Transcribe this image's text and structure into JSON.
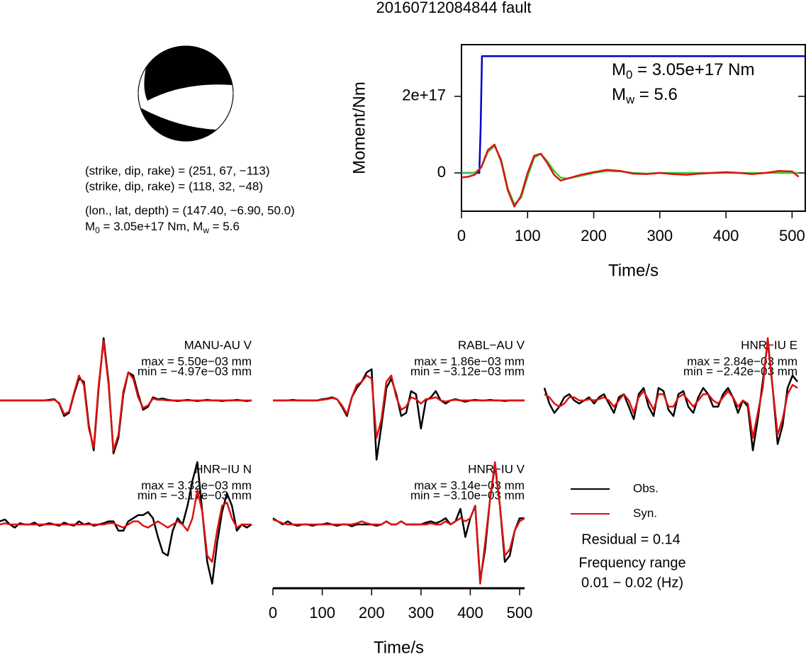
{
  "title": "20160712084844 fault",
  "mechanism": {
    "lines": [
      "(strike, dip, rake) = (251, 67, −113)",
      "(strike, dip, rake) = (118, 32, −48)",
      "(lon., lat, depth) = (147.40, −6.90, 50.0)"
    ],
    "moment": [
      "M",
      "0",
      " = 3.05e+17 Nm, M",
      "w",
      " = 5.6"
    ]
  },
  "fit": {
    "residual": "Residual = 0.14",
    "frequency_label": "Frequency range",
    "frequency": "0.01 − 0.02 (Hz)"
  },
  "chart_data": [
    {
      "type": "line",
      "xlabel": "Time/s",
      "ylabel": "Moment/Nm",
      "xlim": [
        0,
        520
      ],
      "ylim": [
        -1e+17,
        3.35e+17
      ],
      "xticks": [
        0,
        100,
        200,
        300,
        400,
        500
      ],
      "yticks": [
        0,
        {
          "value": 2e+17,
          "label": "2e+17"
        }
      ],
      "annotations": [
        [
          "M",
          "0",
          " = 3.05e+17 Nm"
        ],
        [
          "M",
          "w",
          " = 5.6"
        ]
      ],
      "series": [
        {
          "color": "#0000cc",
          "x": [
            0,
            27,
            29,
            31,
            520
          ],
          "values": [
            0,
            0,
            1.2e+17,
            3.05e+17,
            3.05e+17
          ]
        },
        {
          "color": "#33cc33",
          "x": [
            0,
            10,
            20,
            30,
            40,
            50,
            60,
            70,
            80,
            90,
            100,
            110,
            120,
            130,
            140,
            150,
            160,
            180,
            200,
            220,
            240,
            260,
            280,
            300,
            320,
            340,
            360,
            380,
            400,
            420,
            440,
            460,
            480,
            500,
            510
          ],
          "values": [
            0,
            0,
            0,
            1.5e+16,
            5.5e+16,
            7e+16,
            3.5e+16,
            -4e+16,
            -8.2e+16,
            -6.5e+16,
            -1e+16,
            4e+16,
            5e+16,
            3e+16,
            5000000000000000.0,
            -1.2e+16,
            -1.5e+16,
            -8000000000000000.0,
            0,
            5000000000000000.0,
            4000000000000000.0,
            0,
            -2000000000000000.0,
            0,
            0,
            0,
            0,
            0,
            0,
            0,
            0,
            0,
            0,
            0,
            0
          ]
        },
        {
          "color": "#dd1111",
          "x": [
            0,
            10,
            20,
            30,
            40,
            50,
            60,
            70,
            80,
            90,
            100,
            110,
            120,
            130,
            140,
            150,
            160,
            180,
            200,
            220,
            240,
            260,
            280,
            300,
            320,
            340,
            360,
            380,
            400,
            420,
            440,
            460,
            480,
            500,
            510
          ],
          "values": [
            -1.2e+16,
            -1e+16,
            -5000000000000000.0,
            1.5e+16,
            6e+16,
            7.4e+16,
            3e+16,
            -4.5e+16,
            -8.8e+16,
            -6e+16,
            0,
            4.5e+16,
            5e+16,
            2.5e+16,
            -5000000000000000.0,
            -2e+16,
            -1.5e+16,
            -5000000000000000.0,
            2000000000000000.0,
            8000000000000000.0,
            5000000000000000.0,
            -2000000000000000.0,
            -3000000000000000.0,
            0,
            -3000000000000000.0,
            -5000000000000000.0,
            -2000000000000000.0,
            0,
            2000000000000000.0,
            0,
            -3000000000000000.0,
            0,
            5000000000000000.0,
            4000000000000000.0,
            -1e+16
          ]
        }
      ]
    },
    {
      "type": "line",
      "title": "MANU-AU V",
      "annotations": [
        "max = 5.50e−03 mm",
        "min = −4.97e−03 mm"
      ],
      "xlim": [
        0,
        510
      ],
      "ylim": [
        -1,
        1
      ],
      "x": [
        0,
        10,
        20,
        30,
        40,
        50,
        60,
        70,
        80,
        90,
        100,
        110,
        120,
        130,
        140,
        150,
        160,
        170,
        180,
        190,
        200,
        210,
        220,
        230,
        240,
        250,
        260,
        270,
        280,
        290,
        300,
        310,
        320,
        330,
        340,
        350,
        360,
        370,
        380,
        390,
        400,
        410,
        420,
        430,
        440,
        450,
        460,
        470,
        480,
        490,
        500,
        510
      ],
      "series": [
        {
          "name": "Obs.",
          "color": "#000000",
          "values": [
            0,
            0,
            0,
            0,
            0,
            0,
            0,
            0,
            0,
            0,
            0.01,
            0.02,
            -0.05,
            -0.25,
            -0.2,
            0.1,
            0.35,
            0.3,
            -0.4,
            -0.8,
            0.2,
            1.0,
            0.3,
            -0.85,
            -0.6,
            0.1,
            0.45,
            0.4,
            0.1,
            -0.15,
            -0.1,
            0.05,
            0.02,
            0.03,
            0.01,
            0,
            -0.01,
            0,
            0.01,
            0,
            -0.01,
            0,
            0.01,
            0,
            0,
            -0.01,
            0,
            0,
            0.01,
            0,
            -0.01,
            0
          ]
        },
        {
          "name": "Syn.",
          "color": "#dd1111",
          "values": [
            0,
            0,
            0,
            0,
            0,
            0,
            0,
            0,
            0,
            0,
            0,
            0.01,
            -0.04,
            -0.22,
            -0.18,
            0.12,
            0.4,
            0.25,
            -0.45,
            -0.75,
            0.25,
            0.95,
            0.25,
            -0.8,
            -0.55,
            0.15,
            0.45,
            0.35,
            0.05,
            -0.12,
            -0.08,
            0.03,
            0.01,
            0.01,
            0,
            0,
            0,
            0,
            0,
            0,
            0,
            0,
            0,
            0,
            0,
            0,
            0,
            0,
            0,
            0,
            0,
            0
          ]
        }
      ]
    },
    {
      "type": "line",
      "title": "RABL−AU V",
      "annotations": [
        "max = 1.86e−03 mm",
        "min = −3.12e−03 mm"
      ],
      "xlim": [
        0,
        510
      ],
      "ylim": [
        -1,
        1
      ],
      "x": [
        0,
        10,
        20,
        30,
        40,
        50,
        60,
        70,
        80,
        90,
        100,
        110,
        120,
        130,
        140,
        150,
        160,
        170,
        180,
        190,
        200,
        210,
        220,
        230,
        240,
        250,
        260,
        270,
        280,
        290,
        300,
        310,
        320,
        330,
        340,
        350,
        360,
        370,
        380,
        390,
        400,
        410,
        420,
        430,
        440,
        450,
        460,
        470,
        480,
        490,
        500,
        510
      ],
      "series": [
        {
          "name": "Obs.",
          "color": "#000000",
          "values": [
            0,
            0,
            0,
            0,
            0.01,
            0,
            0,
            0,
            0,
            0,
            0.02,
            0.03,
            0.05,
            0.02,
            -0.1,
            -0.25,
            0.05,
            0.2,
            0.3,
            0.45,
            0.5,
            -0.95,
            -0.4,
            0.2,
            0.35,
            0.1,
            -0.25,
            -0.2,
            0.15,
            0.1,
            -0.45,
            0,
            0.05,
            0.15,
            0,
            -0.05,
            0,
            0.02,
            0,
            -0.02,
            0,
            0.01,
            0,
            0,
            0.01,
            0,
            0,
            -0.01,
            0,
            0,
            0,
            0
          ]
        },
        {
          "name": "Syn.",
          "color": "#dd1111",
          "values": [
            0,
            0,
            0,
            0,
            0,
            0,
            0,
            0,
            0,
            0,
            0.01,
            0.02,
            0.04,
            0.02,
            -0.08,
            -0.22,
            0.05,
            0.25,
            0.3,
            0.4,
            0.35,
            -0.6,
            -0.3,
            0.3,
            0.4,
            0.05,
            -0.15,
            -0.1,
            0.05,
            0.02,
            -0.05,
            0.02,
            0.03,
            0.05,
            0,
            -0.02,
            0,
            0.01,
            0,
            0,
            0,
            0,
            0,
            0,
            0,
            0,
            0,
            0,
            0,
            0,
            0,
            0
          ]
        }
      ]
    },
    {
      "type": "line",
      "title": "HNR−IU E",
      "annotations": [
        "max = 2.84e−03 mm",
        "min = −2.42e−03 mm"
      ],
      "xlim": [
        0,
        510
      ],
      "ylim": [
        -1,
        1
      ],
      "x": [
        0,
        10,
        20,
        30,
        40,
        50,
        60,
        70,
        80,
        90,
        100,
        110,
        120,
        130,
        140,
        150,
        160,
        170,
        180,
        190,
        200,
        210,
        220,
        230,
        240,
        250,
        260,
        270,
        280,
        290,
        300,
        310,
        320,
        330,
        340,
        350,
        360,
        370,
        380,
        390,
        400,
        410,
        420,
        430,
        440,
        450,
        460,
        470,
        480,
        490,
        500,
        510
      ],
      "series": [
        {
          "name": "Obs.",
          "color": "#000000",
          "values": [
            0.2,
            -0.05,
            -0.2,
            -0.1,
            0.05,
            0.1,
            0,
            -0.05,
            0,
            0.05,
            -0.05,
            0.05,
            0.1,
            -0.05,
            -0.2,
            0.05,
            0.1,
            -0.1,
            -0.3,
            0.1,
            0.2,
            -0.1,
            -0.25,
            0.2,
            0.15,
            -0.15,
            -0.25,
            0.1,
            0.15,
            -0.1,
            -0.2,
            0.05,
            0.2,
            0.1,
            -0.1,
            -0.1,
            0.1,
            0.2,
            0.05,
            -0.2,
            0,
            -0.1,
            -0.8,
            -0.3,
            0.3,
            0.95,
            0.2,
            -0.7,
            -0.4,
            0.2,
            0.4,
            0.3
          ]
        },
        {
          "name": "Syn.",
          "color": "#dd1111",
          "values": [
            0.1,
            0.05,
            -0.05,
            -0.1,
            -0.05,
            0.05,
            0.05,
            0,
            0,
            0.02,
            0,
            0.02,
            0.05,
            0,
            -0.1,
            0,
            0.1,
            0,
            -0.2,
            0.05,
            0.15,
            0,
            -0.15,
            0.1,
            0.1,
            -0.1,
            -0.1,
            0.05,
            0.1,
            0,
            -0.1,
            0,
            0.1,
            0.1,
            0,
            -0.05,
            0.05,
            0.15,
            0.05,
            -0.1,
            0,
            -0.05,
            -0.6,
            -0.2,
            0.2,
            1.0,
            0.2,
            -0.55,
            -0.3,
            0.1,
            0.25,
            0.2
          ]
        }
      ]
    },
    {
      "type": "line",
      "title": "HNR−IU N",
      "annotations": [
        "max = 3.32e−03 mm",
        "min = −3.17e−03 mm"
      ],
      "xlim": [
        0,
        510
      ],
      "ylim": [
        -1,
        1
      ],
      "x": [
        0,
        10,
        20,
        30,
        40,
        50,
        60,
        70,
        80,
        90,
        100,
        110,
        120,
        130,
        140,
        150,
        160,
        170,
        180,
        190,
        200,
        210,
        220,
        230,
        240,
        250,
        260,
        270,
        280,
        290,
        300,
        310,
        320,
        330,
        340,
        350,
        360,
        370,
        380,
        390,
        400,
        410,
        420,
        430,
        440,
        450,
        460,
        470,
        480,
        490,
        500,
        510
      ],
      "series": [
        {
          "name": "Obs.",
          "color": "#000000",
          "values": [
            0.05,
            0.08,
            0,
            -0.05,
            0.02,
            0,
            0,
            0.03,
            -0.02,
            0,
            0.02,
            0,
            -0.02,
            0.03,
            0,
            -0.02,
            0.05,
            0,
            0.02,
            -0.02,
            0,
            0.02,
            0.05,
            0.05,
            -0.1,
            -0.1,
            0.05,
            0.1,
            0.15,
            0.15,
            0.2,
            0.1,
            -0.2,
            -0.45,
            -0.5,
            -0.1,
            0.1,
            0,
            0.3,
            0.7,
            1.0,
            0.2,
            -0.6,
            -0.95,
            -0.3,
            0.2,
            0.5,
            0.3,
            -0.1,
            0,
            -0.05,
            0
          ]
        },
        {
          "name": "Syn.",
          "color": "#dd1111",
          "values": [
            0,
            0.02,
            0,
            0,
            0,
            0,
            0,
            0,
            0,
            0,
            0,
            0,
            0,
            0,
            0,
            0,
            0,
            0,
            0,
            0,
            0,
            0,
            0.02,
            0.02,
            -0.02,
            -0.05,
            0,
            0.05,
            0.05,
            -0.02,
            -0.05,
            0,
            0.05,
            0,
            -0.05,
            0,
            0.05,
            0,
            -0.1,
            0.1,
            0.55,
            0.2,
            -0.5,
            -0.6,
            -0.1,
            0.3,
            0.35,
            0.1,
            -0.05,
            0,
            0,
            0
          ]
        }
      ]
    },
    {
      "type": "line",
      "title": "HNR−IU V",
      "annotations": [
        "max = 3.14e−03 mm",
        "min = −3.10e−03 mm"
      ],
      "xlabel": "Time/s",
      "xlim": [
        0,
        510
      ],
      "ylim": [
        -1,
        1
      ],
      "xticks": [
        0,
        100,
        200,
        300,
        400,
        500
      ],
      "x": [
        0,
        10,
        20,
        30,
        40,
        50,
        60,
        70,
        80,
        90,
        100,
        110,
        120,
        130,
        140,
        150,
        160,
        170,
        180,
        190,
        200,
        210,
        220,
        230,
        240,
        250,
        260,
        270,
        280,
        290,
        300,
        310,
        320,
        330,
        340,
        350,
        360,
        370,
        380,
        390,
        400,
        410,
        420,
        430,
        440,
        450,
        460,
        470,
        480,
        490,
        500,
        510
      ],
      "series": [
        {
          "name": "Obs.",
          "color": "#000000",
          "values": [
            0.1,
            0.05,
            0,
            0.05,
            0,
            -0.02,
            0,
            0,
            -0.02,
            0,
            0,
            0.02,
            0,
            -0.02,
            0,
            0,
            -0.03,
            0,
            0,
            0,
            0,
            -0.02,
            0,
            0.05,
            0,
            0,
            0.05,
            0,
            0,
            0,
            0,
            0.03,
            0.05,
            0.02,
            0.05,
            0.1,
            0,
            0.05,
            0.25,
            -0.2,
            0.1,
            0.3,
            -0.9,
            -0.4,
            0.4,
            0.95,
            0.3,
            -0.6,
            -0.5,
            -0.1,
            0.1,
            0.1
          ]
        },
        {
          "name": "Syn.",
          "color": "#dd1111",
          "values": [
            0.08,
            0.05,
            0.02,
            0,
            0,
            0,
            0,
            0,
            0,
            0,
            0,
            0,
            0,
            0,
            0,
            0,
            0,
            0.02,
            0.05,
            0.02,
            0,
            0,
            0,
            0.05,
            0,
            0,
            0.05,
            0,
            0,
            0,
            0,
            0,
            0.02,
            0,
            0,
            0.05,
            0,
            0.05,
            0.1,
            0.05,
            0.1,
            0.3,
            -0.95,
            -0.3,
            0.4,
            1.0,
            0.3,
            -0.5,
            -0.4,
            -0.1,
            0.05,
            0.1
          ]
        }
      ]
    }
  ]
}
